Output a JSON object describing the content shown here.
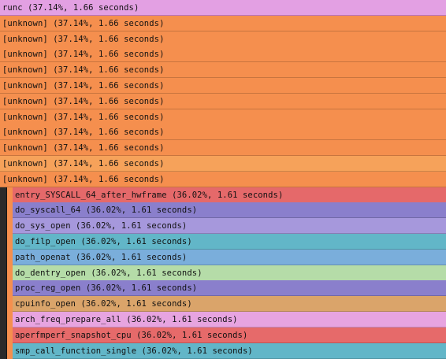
{
  "frames": [
    {
      "name": "runc",
      "percent": "37.14%",
      "time": "1.66 seconds",
      "color": "#e3a0e3"
    },
    {
      "name": "[unknown]",
      "percent": "37.14%",
      "time": "1.66 seconds",
      "color": "#f58f4e"
    },
    {
      "name": "[unknown]",
      "percent": "37.14%",
      "time": "1.66 seconds",
      "color": "#f58f4e"
    },
    {
      "name": "[unknown]",
      "percent": "37.14%",
      "time": "1.66 seconds",
      "color": "#f58f4e"
    },
    {
      "name": "[unknown]",
      "percent": "37.14%",
      "time": "1.66 seconds",
      "color": "#f58f4e"
    },
    {
      "name": "[unknown]",
      "percent": "37.14%",
      "time": "1.66 seconds",
      "color": "#f58f4e"
    },
    {
      "name": "[unknown]",
      "percent": "37.14%",
      "time": "1.66 seconds",
      "color": "#f58f4e"
    },
    {
      "name": "[unknown]",
      "percent": "37.14%",
      "time": "1.66 seconds",
      "color": "#f58f4e"
    },
    {
      "name": "[unknown]",
      "percent": "37.14%",
      "time": "1.66 seconds",
      "color": "#f58f4e"
    },
    {
      "name": "[unknown]",
      "percent": "37.14%",
      "time": "1.66 seconds",
      "color": "#f58f4e"
    },
    {
      "name": "[unknown]",
      "percent": "37.14%",
      "time": "1.66 seconds",
      "color": "#f6a25a"
    },
    {
      "name": "[unknown]",
      "percent": "37.14%",
      "time": "1.66 seconds",
      "color": "#f58f4e"
    },
    {
      "name": "entry_SYSCALL_64_after_hwframe",
      "percent": "36.02%",
      "time": "1.61 seconds",
      "color": "#e5696a"
    },
    {
      "name": "do_syscall_64",
      "percent": "36.02%",
      "time": "1.61 seconds",
      "color": "#8a7fcc"
    },
    {
      "name": "do_sys_open",
      "percent": "36.02%",
      "time": "1.61 seconds",
      "color": "#a698dc"
    },
    {
      "name": "do_filp_open",
      "percent": "36.02%",
      "time": "1.61 seconds",
      "color": "#62b6c8"
    },
    {
      "name": "path_openat",
      "percent": "36.02%",
      "time": "1.61 seconds",
      "color": "#7aaedb"
    },
    {
      "name": "do_dentry_open",
      "percent": "36.02%",
      "time": "1.61 seconds",
      "color": "#b5dca8"
    },
    {
      "name": "proc_reg_open",
      "percent": "36.02%",
      "time": "1.61 seconds",
      "color": "#8a7fcc"
    },
    {
      "name": "cpuinfo_open",
      "percent": "36.02%",
      "time": "1.61 seconds",
      "color": "#daa46a"
    },
    {
      "name": "arch_freq_prepare_all",
      "percent": "36.02%",
      "time": "1.61 seconds",
      "color": "#e7a4e0"
    },
    {
      "name": "aperfmperf_snapshot_cpu",
      "percent": "36.02%",
      "time": "1.61 seconds",
      "color": "#e66a6a"
    },
    {
      "name": "smp_call_function_single",
      "percent": "36.02%",
      "time": "1.61 seconds",
      "color": "#62b6c8"
    }
  ]
}
